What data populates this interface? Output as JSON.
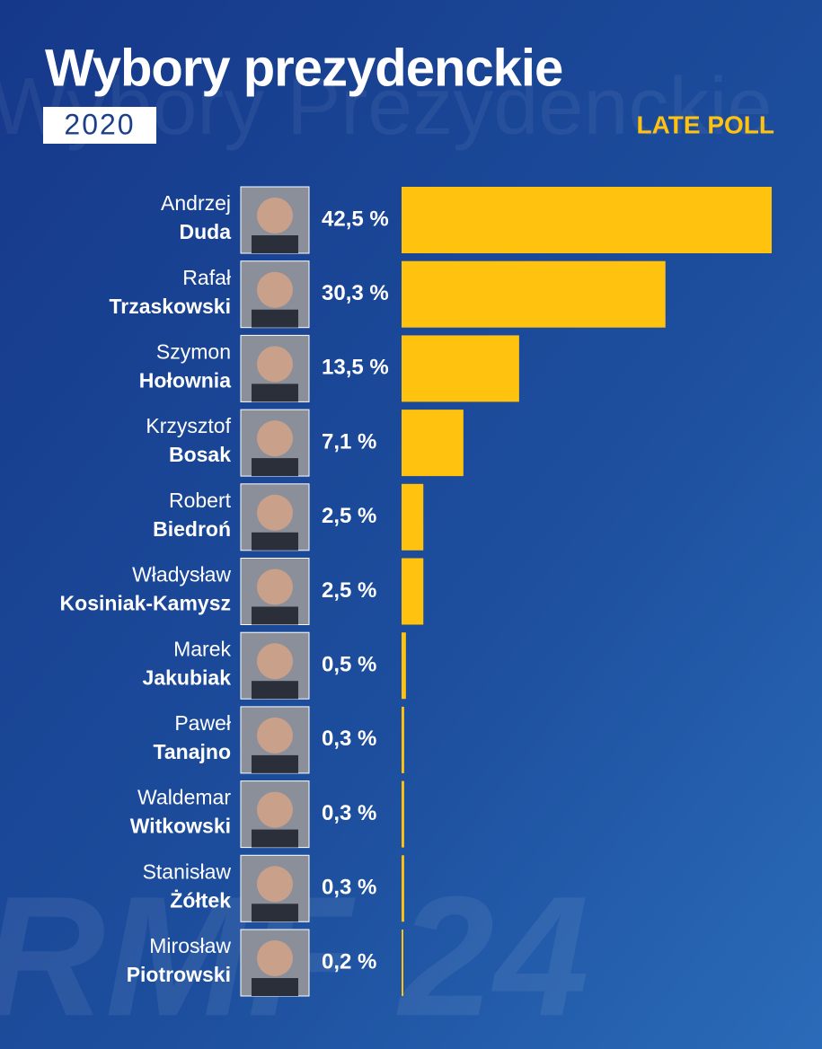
{
  "chart_data": {
    "type": "bar",
    "title": "Wybory prezydenckie",
    "subtitle": "2020",
    "annotation": "LATE POLL",
    "watermark": "Wybory Prezydenckie",
    "logo": "RMF 24",
    "categories": [
      {
        "first": "Andrzej",
        "last": "Duda"
      },
      {
        "first": "Rafał",
        "last": "Trzaskowski"
      },
      {
        "first": "Szymon",
        "last": "Hołownia"
      },
      {
        "first": "Krzysztof",
        "last": "Bosak"
      },
      {
        "first": "Robert",
        "last": "Biedroń"
      },
      {
        "first": "Władysław",
        "last": "Kosiniak-Kamysz"
      },
      {
        "first": "Marek",
        "last": "Jakubiak"
      },
      {
        "first": "Paweł",
        "last": "Tanajno"
      },
      {
        "first": "Waldemar",
        "last": "Witkowski"
      },
      {
        "first": "Stanisław",
        "last": "Żółtek"
      },
      {
        "first": "Mirosław",
        "last": "Piotrowski"
      }
    ],
    "values": [
      42.5,
      30.3,
      13.5,
      7.1,
      2.5,
      2.5,
      0.5,
      0.3,
      0.3,
      0.3,
      0.2
    ],
    "value_labels": [
      "42,5 %",
      "30,3 %",
      "13,5 %",
      "7,1 %",
      "2,5 %",
      "2,5 %",
      "0,5 %",
      "0,3 %",
      "0,3 %",
      "0,3 %",
      "0,2 %"
    ],
    "color": "#ffc20e"
  }
}
